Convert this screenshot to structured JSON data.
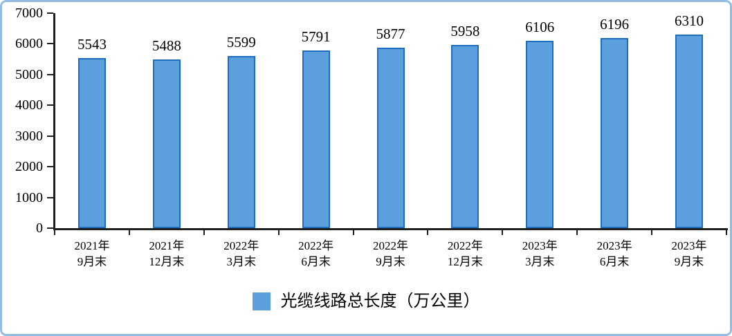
{
  "chart_data": {
    "type": "bar",
    "title": "",
    "categories": [
      "2021年\n9月末",
      "2021年\n12月末",
      "2022年\n3月末",
      "2022年\n6月末",
      "2022年\n9月末",
      "2022年\n12月末",
      "2023年\n3月末",
      "2023年\n6月末",
      "2023年\n9月末"
    ],
    "values": [
      5543,
      5488,
      5599,
      5791,
      5877,
      5958,
      6106,
      6196,
      6310
    ],
    "ylim": [
      0,
      7000
    ],
    "yticks": [
      0,
      1000,
      2000,
      3000,
      4000,
      5000,
      6000,
      7000
    ],
    "xlabel": "",
    "ylabel": "",
    "grid": false,
    "legend_position": "bottom",
    "legend_label": "光缆线路总长度（万公里）",
    "colors": {
      "bar_fill": "#5b9fdc",
      "bar_border": "#1e6cc0",
      "axis": "#1f1f1f",
      "frame_border": "#93bce5",
      "text": "#000000"
    }
  }
}
